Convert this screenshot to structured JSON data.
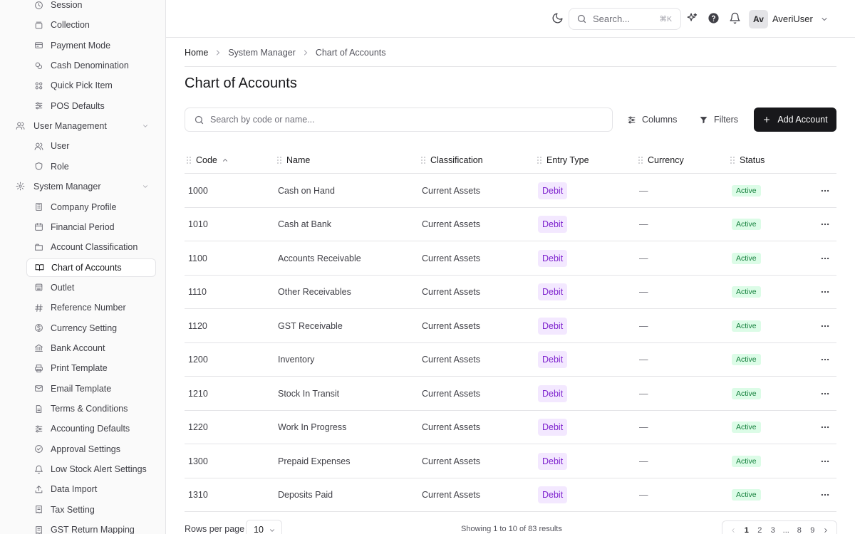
{
  "sidebar": {
    "items_top": [
      {
        "label": "Session",
        "icon": "clock-icon"
      },
      {
        "label": "Collection",
        "icon": "collection-icon"
      },
      {
        "label": "Payment Mode",
        "icon": "credit-card-icon"
      },
      {
        "label": "Cash Denomination",
        "icon": "coins-icon"
      },
      {
        "label": "Quick Pick Item",
        "icon": "grid-icon"
      },
      {
        "label": "POS Defaults",
        "icon": "sliders-icon"
      }
    ],
    "group_user": {
      "label": "User Management",
      "icon": "users-icon"
    },
    "items_user": [
      {
        "label": "User",
        "icon": "users-icon"
      },
      {
        "label": "Role",
        "icon": "shield-icon"
      }
    ],
    "group_system": {
      "label": "System Manager",
      "icon": "gear-icon"
    },
    "items_system": [
      {
        "label": "Company Profile",
        "icon": "building-icon"
      },
      {
        "label": "Financial Period",
        "icon": "calendar-icon"
      },
      {
        "label": "Account Classification",
        "icon": "folder-icon"
      },
      {
        "label": "Chart of Accounts",
        "icon": "book-icon"
      },
      {
        "label": "Outlet",
        "icon": "store-icon"
      },
      {
        "label": "Reference Number",
        "icon": "hash-icon"
      },
      {
        "label": "Currency Setting",
        "icon": "currency-icon"
      },
      {
        "label": "Bank Account",
        "icon": "bank-icon"
      },
      {
        "label": "Print Template",
        "icon": "printer-icon"
      },
      {
        "label": "Email Template",
        "icon": "mail-icon"
      },
      {
        "label": "Terms & Conditions",
        "icon": "document-icon"
      },
      {
        "label": "Accounting Defaults",
        "icon": "sliders-icon"
      },
      {
        "label": "Approval Settings",
        "icon": "check-circle-icon"
      },
      {
        "label": "Low Stock Alert Settings",
        "icon": "bell-icon"
      },
      {
        "label": "Data Import",
        "icon": "upload-icon"
      },
      {
        "label": "Tax Setting",
        "icon": "receipt-icon"
      },
      {
        "label": "GST Return Mapping",
        "icon": "receipt-icon"
      }
    ]
  },
  "topbar": {
    "search_placeholder": "Search...",
    "search_shortcut": "⌘K",
    "avatar_initials": "Av",
    "username": "AveriUser"
  },
  "breadcrumb": [
    "Home",
    "System Manager",
    "Chart of Accounts"
  ],
  "page": {
    "title": "Chart of Accounts",
    "search_placeholder": "Search by code or name...",
    "columns_label": "Columns",
    "filters_label": "Filters",
    "add_label": "Add Account"
  },
  "table": {
    "headers": [
      "Code",
      "Name",
      "Classification",
      "Entry Type",
      "Currency",
      "Status"
    ],
    "rows": [
      {
        "code": "1000",
        "name": "Cash on Hand",
        "classification": "Current Assets",
        "entry": "Debit",
        "currency": "—",
        "status": "Active"
      },
      {
        "code": "1010",
        "name": "Cash at Bank",
        "classification": "Current Assets",
        "entry": "Debit",
        "currency": "—",
        "status": "Active"
      },
      {
        "code": "1100",
        "name": "Accounts Receivable",
        "classification": "Current Assets",
        "entry": "Debit",
        "currency": "—",
        "status": "Active"
      },
      {
        "code": "1110",
        "name": "Other Receivables",
        "classification": "Current Assets",
        "entry": "Debit",
        "currency": "—",
        "status": "Active"
      },
      {
        "code": "1120",
        "name": "GST Receivable",
        "classification": "Current Assets",
        "entry": "Debit",
        "currency": "—",
        "status": "Active"
      },
      {
        "code": "1200",
        "name": "Inventory",
        "classification": "Current Assets",
        "entry": "Debit",
        "currency": "—",
        "status": "Active"
      },
      {
        "code": "1210",
        "name": "Stock In Transit",
        "classification": "Current Assets",
        "entry": "Debit",
        "currency": "—",
        "status": "Active"
      },
      {
        "code": "1220",
        "name": "Work In Progress",
        "classification": "Current Assets",
        "entry": "Debit",
        "currency": "—",
        "status": "Active"
      },
      {
        "code": "1300",
        "name": "Prepaid Expenses",
        "classification": "Current Assets",
        "entry": "Debit",
        "currency": "—",
        "status": "Active"
      },
      {
        "code": "1310",
        "name": "Deposits Paid",
        "classification": "Current Assets",
        "entry": "Debit",
        "currency": "—",
        "status": "Active"
      }
    ]
  },
  "footer": {
    "rows_per_page_label": "Rows per page",
    "rows_per_page_value": "10",
    "results_text": "Showing 1 to 10 of 83 results",
    "pages": [
      "1",
      "2",
      "3",
      "...",
      "8",
      "9"
    ]
  }
}
